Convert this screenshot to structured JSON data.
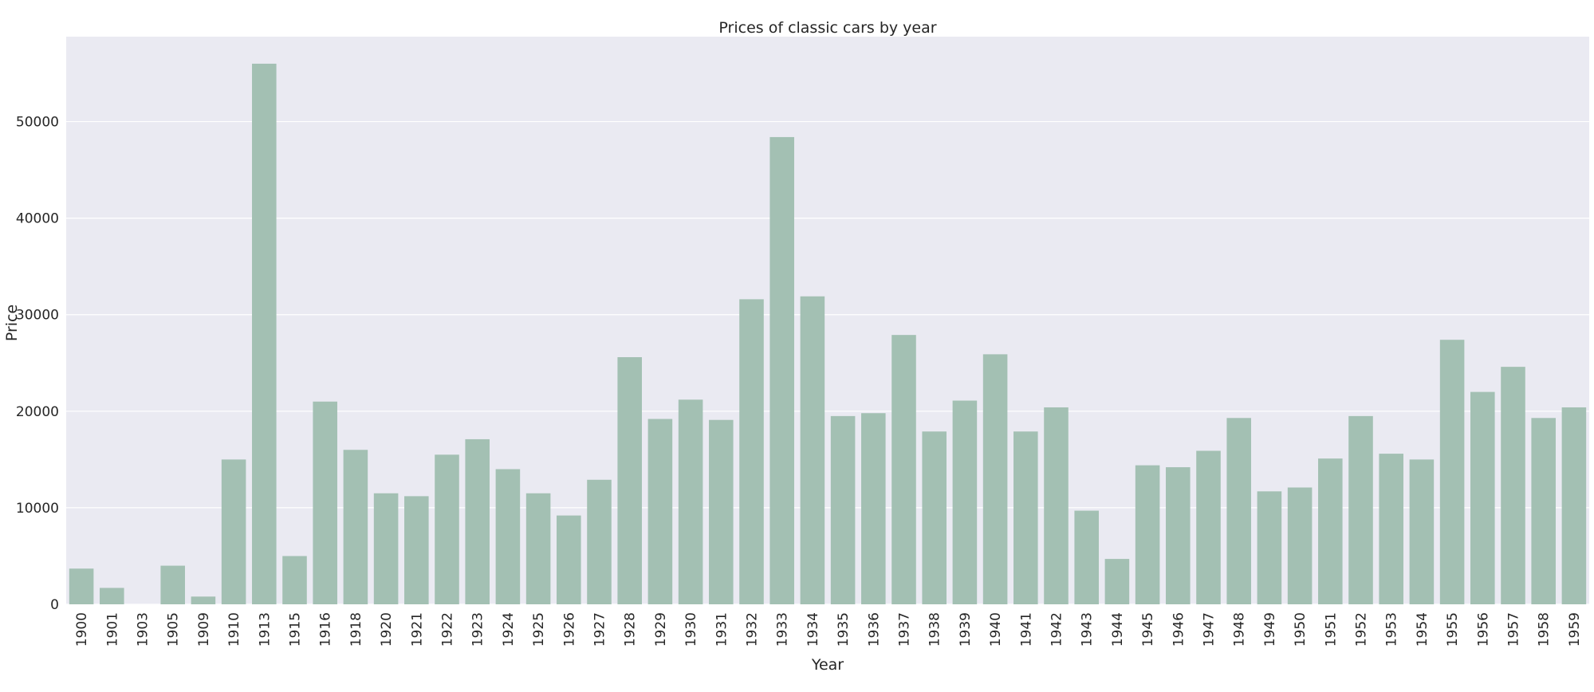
{
  "chart_data": {
    "type": "bar",
    "title": "Prices of classic cars by year",
    "xlabel": "Year",
    "ylabel": "Price",
    "ylim": [
      0,
      58800
    ],
    "yticks": [
      0,
      10000,
      20000,
      30000,
      40000,
      50000
    ],
    "grid": true,
    "bar_color": "#a3c0b3",
    "background_color": "#eaeaf2",
    "grid_color": "#ffffff",
    "categories": [
      "1900",
      "1901",
      "1903",
      "1905",
      "1909",
      "1910",
      "1913",
      "1915",
      "1916",
      "1918",
      "1920",
      "1921",
      "1922",
      "1923",
      "1924",
      "1925",
      "1926",
      "1927",
      "1928",
      "1929",
      "1930",
      "1931",
      "1932",
      "1933",
      "1934",
      "1935",
      "1936",
      "1937",
      "1938",
      "1939",
      "1940",
      "1941",
      "1942",
      "1943",
      "1944",
      "1945",
      "1946",
      "1947",
      "1948",
      "1949",
      "1950",
      "1951",
      "1952",
      "1953",
      "1954",
      "1955",
      "1956",
      "1957",
      "1958",
      "1959"
    ],
    "values": [
      3700,
      1700,
      0,
      4000,
      800,
      15000,
      56000,
      5000,
      21000,
      16000,
      11500,
      11200,
      15500,
      17100,
      14000,
      11500,
      9200,
      12900,
      25600,
      19200,
      21200,
      19100,
      31600,
      48400,
      31900,
      19500,
      19800,
      27900,
      17900,
      21100,
      25900,
      17900,
      20400,
      9700,
      4700,
      14400,
      14200,
      15900,
      19300,
      11700,
      12100,
      15100,
      19500,
      15600,
      15000,
      27400,
      22000,
      24600,
      19300,
      20400
    ]
  }
}
